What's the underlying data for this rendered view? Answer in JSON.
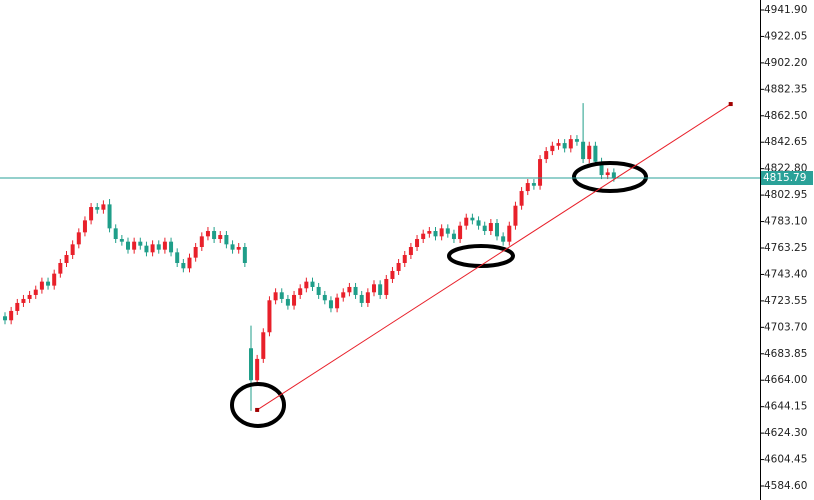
{
  "chart_data": {
    "type": "candlestick",
    "open": [
      4712,
      4709,
      4716,
      4722,
      4725,
      4728,
      4732,
      4738,
      4735,
      4744,
      4752,
      4758,
      4766,
      4775,
      4784,
      4794,
      4792,
      4796,
      4778,
      4770,
      4768,
      4762,
      4768,
      4765,
      4760,
      4766,
      4762,
      4768,
      4760,
      4752,
      4748,
      4756,
      4764,
      4772,
      4776,
      4770,
      4773,
      4766,
      4762,
      4764,
      4688,
      4664,
      4680,
      4700,
      4724,
      4730,
      4725,
      4720,
      4728,
      4733,
      4738,
      4734,
      4728,
      4724,
      4718,
      4726,
      4730,
      4734,
      4728,
      4722,
      4730,
      4736,
      4728,
      4740,
      4746,
      4752,
      4758,
      4764,
      4770,
      4774,
      4776,
      4772,
      4778,
      4774,
      4770,
      4780,
      4786,
      4784,
      4780,
      4776,
      4782,
      4772,
      4768,
      4780,
      4795,
      4806,
      4812,
      4810,
      4830,
      4836,
      4840,
      4842,
      4838,
      4845,
      4843,
      4830,
      4840,
      4828,
      4818,
      4820
    ],
    "high": [
      4715,
      4719,
      4725,
      4728,
      4731,
      4735,
      4741,
      4741,
      4747,
      4755,
      4761,
      4769,
      4778,
      4787,
      4797,
      4797,
      4799,
      4800,
      4781,
      4773,
      4771,
      4771,
      4771,
      4768,
      4769,
      4769,
      4771,
      4771,
      4763,
      4755,
      4759,
      4767,
      4775,
      4779,
      4779,
      4776,
      4776,
      4769,
      4767,
      4767,
      4705,
      4683,
      4703,
      4727,
      4733,
      4733,
      4728,
      4731,
      4736,
      4741,
      4741,
      4737,
      4731,
      4727,
      4729,
      4733,
      4737,
      4737,
      4731,
      4733,
      4739,
      4739,
      4743,
      4749,
      4755,
      4761,
      4767,
      4773,
      4777,
      4779,
      4779,
      4781,
      4781,
      4777,
      4783,
      4789,
      4789,
      4787,
      4783,
      4785,
      4785,
      4775,
      4783,
      4798,
      4809,
      4815,
      4815,
      4833,
      4839,
      4843,
      4845,
      4845,
      4848,
      4848,
      4872,
      4843,
      4843,
      4831,
      4823,
      4823
    ],
    "low": [
      4706,
      4706,
      4713,
      4719,
      4722,
      4725,
      4729,
      4732,
      4732,
      4741,
      4749,
      4755,
      4763,
      4772,
      4781,
      4789,
      4789,
      4775,
      4767,
      4765,
      4759,
      4759,
      4762,
      4757,
      4757,
      4759,
      4759,
      4757,
      4749,
      4745,
      4745,
      4753,
      4761,
      4769,
      4767,
      4767,
      4763,
      4759,
      4759,
      4749,
      4641,
      4661,
      4677,
      4697,
      4721,
      4722,
      4717,
      4717,
      4725,
      4730,
      4731,
      4725,
      4721,
      4715,
      4715,
      4723,
      4727,
      4725,
      4719,
      4719,
      4727,
      4725,
      4725,
      4737,
      4743,
      4749,
      4755,
      4761,
      4767,
      4771,
      4769,
      4769,
      4771,
      4767,
      4767,
      4777,
      4781,
      4777,
      4773,
      4773,
      4769,
      4765,
      4765,
      4777,
      4792,
      4803,
      4807,
      4807,
      4827,
      4833,
      4837,
      4835,
      4835,
      4840,
      4827,
      4827,
      4825,
      4815,
      4815,
      4813
    ],
    "close": [
      4709,
      4716,
      4722,
      4725,
      4728,
      4732,
      4738,
      4735,
      4744,
      4752,
      4758,
      4766,
      4775,
      4784,
      4794,
      4792,
      4796,
      4778,
      4770,
      4768,
      4762,
      4768,
      4765,
      4760,
      4766,
      4762,
      4768,
      4760,
      4752,
      4748,
      4756,
      4764,
      4772,
      4776,
      4770,
      4773,
      4766,
      4762,
      4764,
      4752,
      4664,
      4680,
      4700,
      4724,
      4730,
      4725,
      4720,
      4728,
      4733,
      4738,
      4734,
      4728,
      4724,
      4718,
      4726,
      4730,
      4734,
      4728,
      4722,
      4730,
      4736,
      4728,
      4740,
      4746,
      4752,
      4758,
      4764,
      4770,
      4774,
      4776,
      4772,
      4778,
      4774,
      4770,
      4780,
      4786,
      4784,
      4780,
      4776,
      4782,
      4772,
      4768,
      4780,
      4795,
      4806,
      4812,
      4810,
      4830,
      4836,
      4840,
      4842,
      4838,
      4845,
      4843,
      4830,
      4840,
      4828,
      4818,
      4820,
      4815.79
    ],
    "up_color": "#e8202a",
    "down_color": "#1f9e89",
    "ylim": [
      4574.1,
      4949.4
    ],
    "yticks": [
      {
        "value": 4941.9,
        "label": "4941.90"
      },
      4922.05,
      {
        "value": 4902.2,
        "label": "4902.20"
      },
      4882.35,
      {
        "value": 4862.5,
        "label": "4862.50"
      },
      4842.65,
      {
        "value": 4822.8,
        "label": "4822.80"
      },
      4802.95,
      {
        "value": 4783.1,
        "label": "4783.10"
      },
      4763.25,
      {
        "value": 4743.4,
        "label": "4743.40"
      },
      4723.55,
      {
        "value": 4703.7,
        "label": "4703.70"
      },
      4683.85,
      {
        "value": 4664,
        "label": "4664.00"
      },
      4644.15,
      {
        "value": 4624.3,
        "label": "4624.30"
      },
      4604.45,
      {
        "value": 4584.6,
        "label": "4584.60"
      }
    ],
    "last_price": 4815.79,
    "last_price_color": "#2aa198",
    "trendline": {
      "x": [
        41,
        118
      ],
      "values": [
        4641.7,
        4871.3
      ],
      "color": "#e8202a"
    }
  }
}
